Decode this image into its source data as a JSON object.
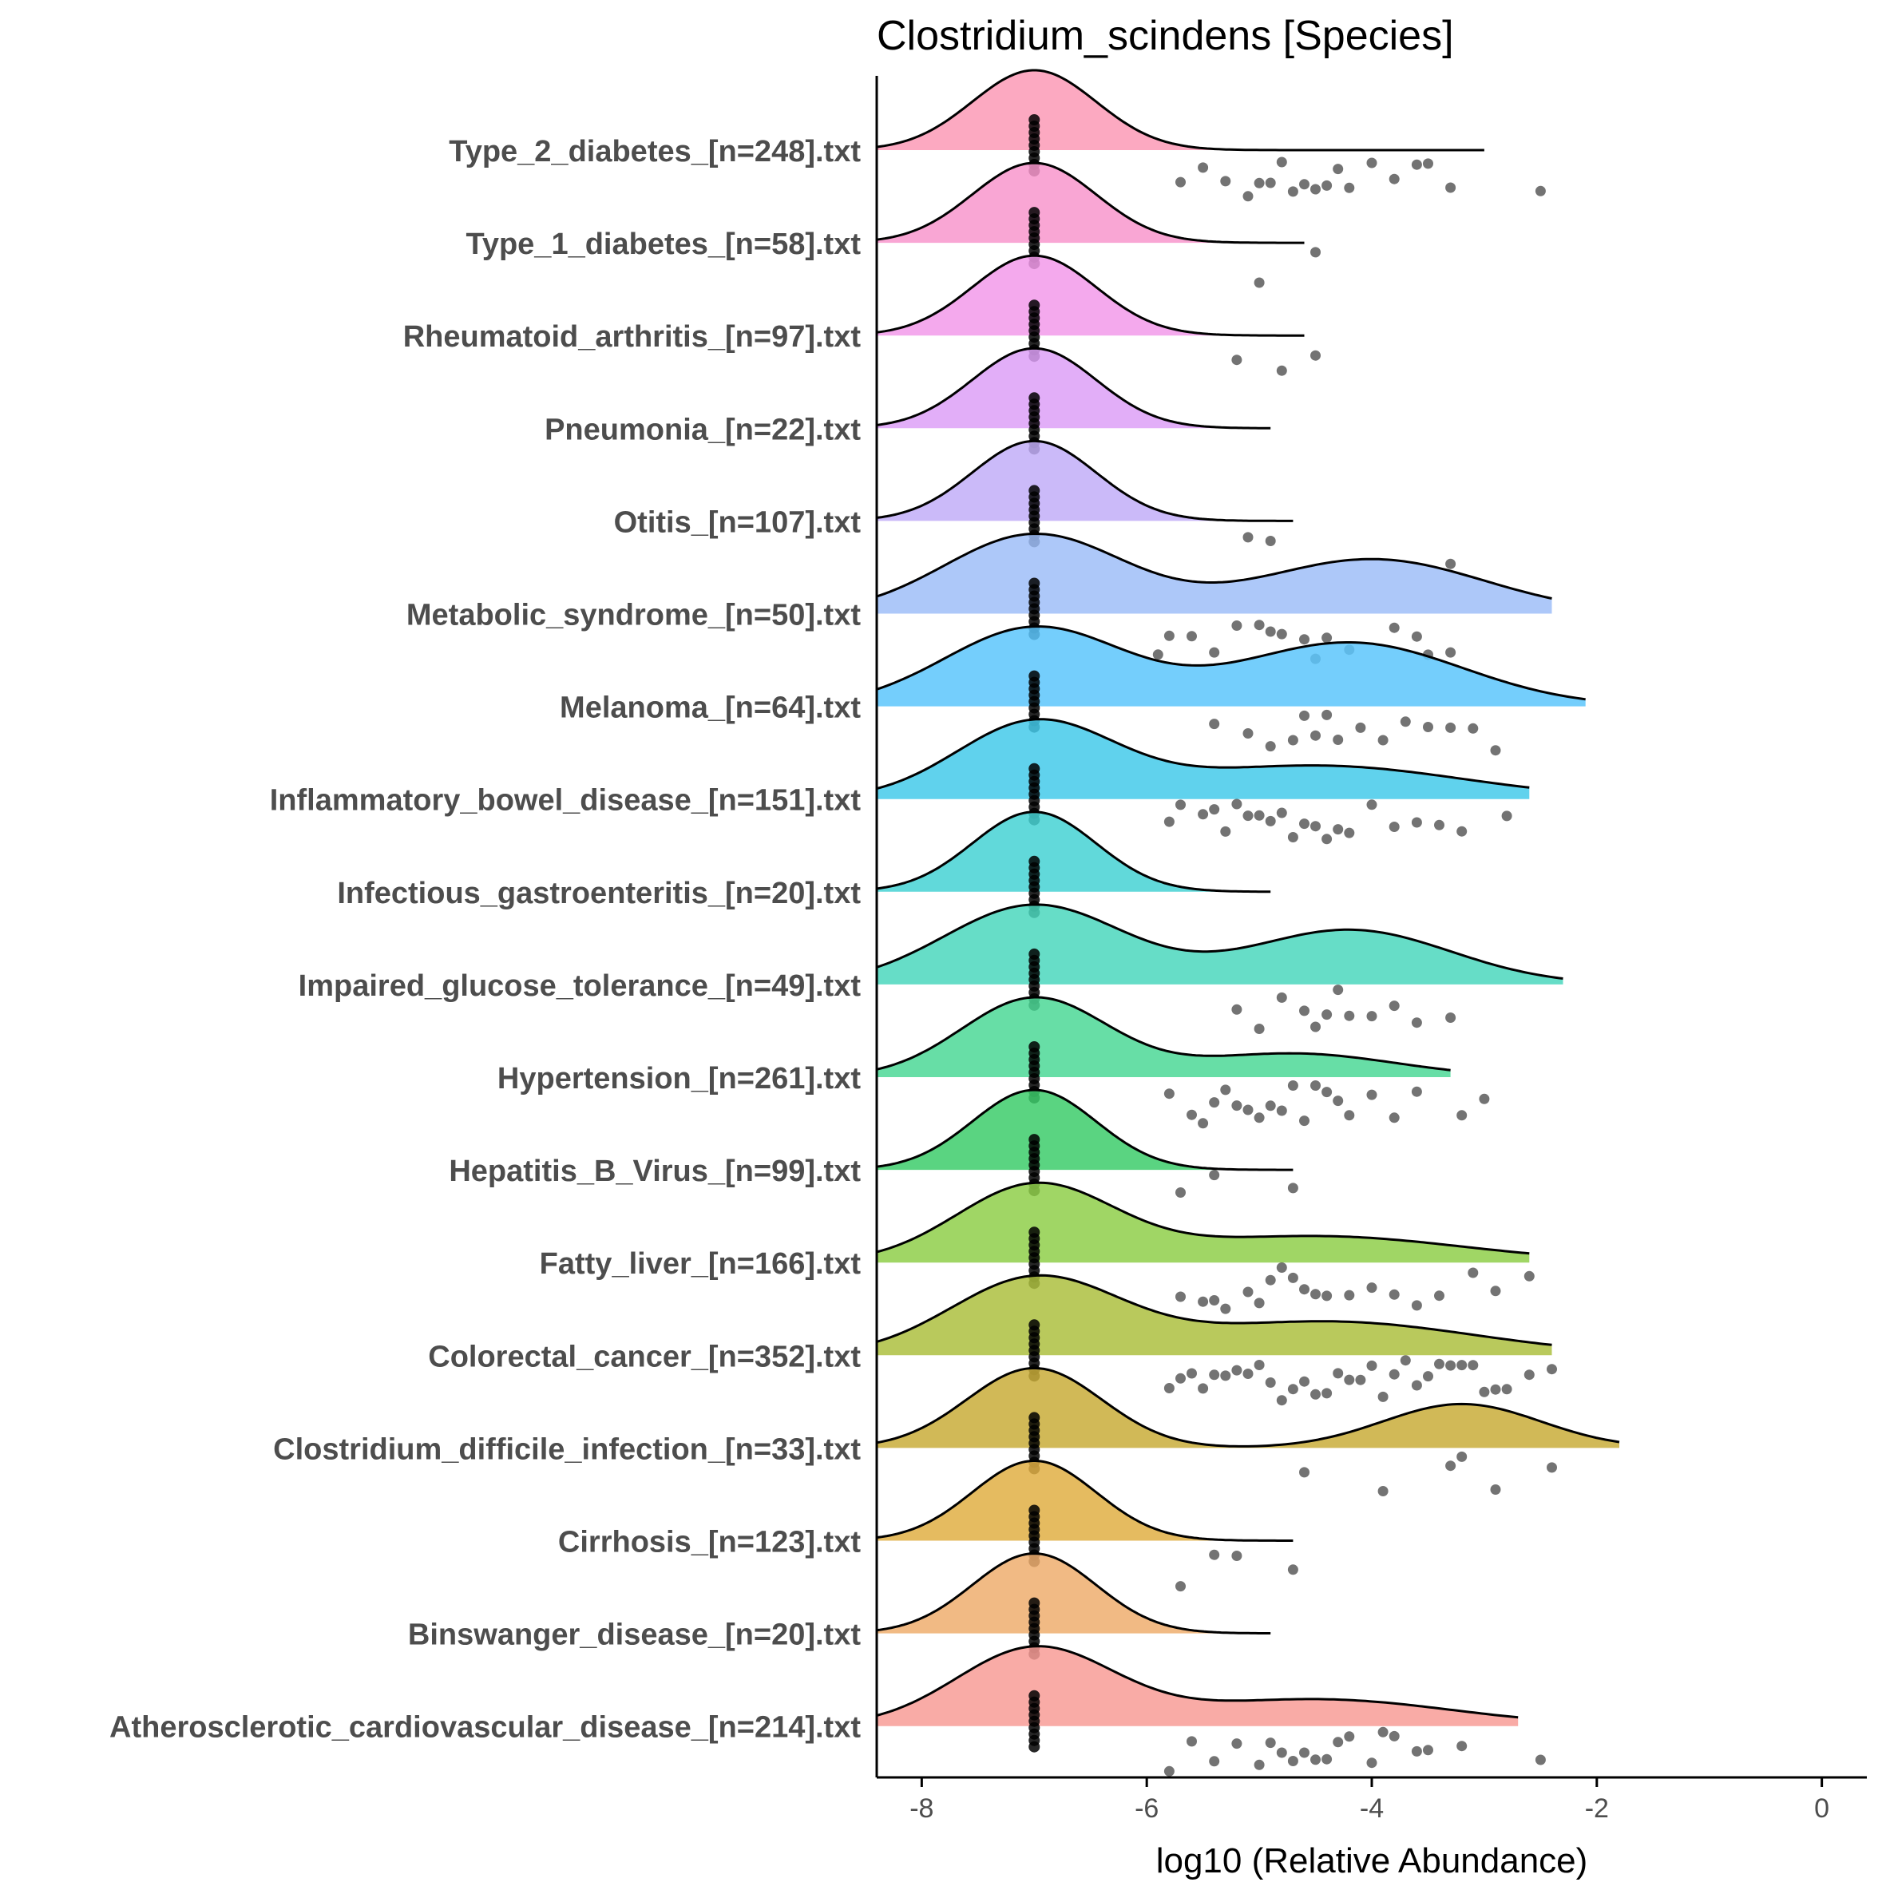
{
  "chart_data": {
    "type": "ridgeline",
    "title": "Clostridium_scindens [Species]",
    "xlabel": "log10 (Relative Abundance)",
    "ylabel": "",
    "xlim": [
      -8.4,
      0.4
    ],
    "xticks": [
      -8,
      -6,
      -4,
      -2,
      0
    ],
    "xtick_labels": [
      "-8",
      "-6",
      "-4",
      "-2",
      "0"
    ],
    "zero_value": -7,
    "series": [
      {
        "name": "Type_2_diabetes_[n=248].txt",
        "color": "#FB9AB6",
        "curve_end": -3.0,
        "bumps": [
          [
            -7,
            0.55,
            1
          ]
        ],
        "points": [
          -5.7,
          -5.5,
          -5.3,
          -5.1,
          -5.0,
          -4.9,
          -4.8,
          -4.7,
          -4.6,
          -4.5,
          -4.4,
          -4.3,
          -4.2,
          -4.0,
          -3.8,
          -3.6,
          -3.5,
          -3.3,
          -2.5
        ]
      },
      {
        "name": "Type_1_diabetes_[n=58].txt",
        "color": "#F896CC",
        "curve_end": -4.6,
        "bumps": [
          [
            -7,
            0.55,
            1
          ]
        ],
        "points": [
          -5.0,
          -4.5
        ]
      },
      {
        "name": "Rheumatoid_arthritis_[n=97].txt",
        "color": "#F29AEA",
        "curve_end": -4.6,
        "bumps": [
          [
            -7,
            0.55,
            1
          ]
        ],
        "points": [
          -5.2,
          -4.8,
          -4.5
        ]
      },
      {
        "name": "Pneumonia_[n=22].txt",
        "color": "#DDA0F7",
        "curve_end": -4.9,
        "bumps": [
          [
            -7,
            0.55,
            1
          ]
        ],
        "points": []
      },
      {
        "name": "Otitis_[n=107].txt",
        "color": "#C2AEF8",
        "curve_end": -4.7,
        "bumps": [
          [
            -7,
            0.55,
            1
          ]
        ],
        "points": [
          -5.1,
          -4.9,
          -3.3
        ]
      },
      {
        "name": "Metabolic_syndrome_[n=50].txt",
        "color": "#9FBEF8",
        "curve_end": -2.4,
        "bumps": [
          [
            -7,
            0.8,
            0.8
          ],
          [
            -4,
            1.0,
            0.55
          ]
        ],
        "points": [
          -5.9,
          -5.8,
          -5.6,
          -5.4,
          -5.2,
          -5.0,
          -4.9,
          -4.8,
          -4.6,
          -4.5,
          -4.4,
          -4.2,
          -3.8,
          -3.6,
          -3.5,
          -3.3
        ]
      },
      {
        "name": "Melanoma_[n=64].txt",
        "color": "#5CC6FB",
        "curve_end": -2.1,
        "bumps": [
          [
            -7,
            0.8,
            0.8
          ],
          [
            -4.2,
            1.0,
            0.65
          ]
        ],
        "points": [
          -5.4,
          -5.1,
          -4.9,
          -4.7,
          -4.6,
          -4.5,
          -4.4,
          -4.3,
          -4.1,
          -3.9,
          -3.7,
          -3.5,
          -3.3,
          -3.1,
          -2.9
        ]
      },
      {
        "name": "Inflammatory_bowel_disease_[n=151].txt",
        "color": "#44CAEA",
        "curve_end": -2.6,
        "bumps": [
          [
            -7,
            0.7,
            1
          ],
          [
            -4.5,
            1.3,
            0.45
          ]
        ],
        "points": [
          -5.8,
          -5.7,
          -5.5,
          -5.4,
          -5.3,
          -5.2,
          -5.1,
          -5.0,
          -4.9,
          -4.8,
          -4.7,
          -4.6,
          -4.5,
          -4.4,
          -4.3,
          -4.2,
          -4.0,
          -3.8,
          -3.6,
          -3.4,
          -3.2,
          -2.8
        ]
      },
      {
        "name": "Infectious_gastroenteritis_[n=20].txt",
        "color": "#45D2D3",
        "curve_end": -4.9,
        "bumps": [
          [
            -7,
            0.55,
            1
          ]
        ],
        "points": []
      },
      {
        "name": "Impaired_glucose_tolerance_[n=49].txt",
        "color": "#4BD7BD",
        "curve_end": -2.3,
        "bumps": [
          [
            -7,
            0.8,
            0.8
          ],
          [
            -4.2,
            0.9,
            0.55
          ]
        ],
        "points": [
          -5.2,
          -5.0,
          -4.8,
          -4.6,
          -4.5,
          -4.4,
          -4.3,
          -4.2,
          -4.0,
          -3.8,
          -3.6,
          -3.3
        ]
      },
      {
        "name": "Hypertension_[n=261].txt",
        "color": "#4CD897",
        "curve_end": -3.3,
        "bumps": [
          [
            -7,
            0.65,
            1
          ],
          [
            -4.7,
            0.9,
            0.3
          ]
        ],
        "points": [
          -5.8,
          -5.6,
          -5.5,
          -5.4,
          -5.3,
          -5.2,
          -5.1,
          -5.0,
          -4.9,
          -4.8,
          -4.7,
          -4.6,
          -4.5,
          -4.4,
          -4.3,
          -4.2,
          -4.0,
          -3.8,
          -3.6,
          -3.2,
          -3.0
        ]
      },
      {
        "name": "Hepatitis_B_Virus_[n=99].txt",
        "color": "#3DCC6B",
        "curve_end": -4.7,
        "bumps": [
          [
            -7,
            0.55,
            1
          ]
        ],
        "points": [
          -5.7,
          -5.4,
          -4.7
        ]
      },
      {
        "name": "Fatty_liver_[n=166].txt",
        "color": "#8FCF4A",
        "curve_end": -2.6,
        "bumps": [
          [
            -7,
            0.7,
            1
          ],
          [
            -4.5,
            1.3,
            0.35
          ]
        ],
        "points": [
          -5.7,
          -5.5,
          -5.4,
          -5.3,
          -5.1,
          -5.0,
          -4.9,
          -4.8,
          -4.7,
          -4.6,
          -4.5,
          -4.4,
          -4.2,
          -4.0,
          -3.8,
          -3.6,
          -3.4,
          -3.1,
          -2.9,
          -2.6
        ]
      },
      {
        "name": "Colorectal_cancer_[n=352].txt",
        "color": "#ADC03F",
        "curve_end": -2.4,
        "bumps": [
          [
            -7,
            0.75,
            1
          ],
          [
            -4.4,
            1.3,
            0.45
          ]
        ],
        "points": [
          -5.8,
          -5.7,
          -5.6,
          -5.5,
          -5.4,
          -5.3,
          -5.2,
          -5.1,
          -5.0,
          -4.9,
          -4.8,
          -4.7,
          -4.6,
          -4.5,
          -4.4,
          -4.3,
          -4.2,
          -4.1,
          -4.0,
          -3.9,
          -3.8,
          -3.7,
          -3.6,
          -3.5,
          -3.4,
          -3.3,
          -3.2,
          -3.1,
          -3.0,
          -2.9,
          -2.8,
          -2.6,
          -2.4
        ]
      },
      {
        "name": "Clostridium_difficile_infection_[n=33].txt",
        "color": "#C9AD3A",
        "curve_end": -1.8,
        "bumps": [
          [
            -7,
            0.6,
            1
          ],
          [
            -3.2,
            0.7,
            0.55
          ]
        ],
        "points": [
          -4.6,
          -3.9,
          -3.3,
          -3.2,
          -2.9,
          -2.4
        ]
      },
      {
        "name": "Cirrhosis_[n=123].txt",
        "color": "#E1AF44",
        "curve_end": -4.7,
        "bumps": [
          [
            -7,
            0.55,
            1
          ]
        ],
        "points": [
          -5.7,
          -5.4,
          -5.2,
          -4.7
        ]
      },
      {
        "name": "Binswanger_disease_[n=20].txt",
        "color": "#EFAE6E",
        "curve_end": -4.9,
        "bumps": [
          [
            -7,
            0.55,
            1
          ]
        ],
        "points": []
      },
      {
        "name": "Atherosclerotic_cardiovascular_disease_[n=214].txt",
        "color": "#F89C96",
        "curve_end": -2.7,
        "bumps": [
          [
            -7,
            0.7,
            1
          ],
          [
            -4.5,
            1.2,
            0.35
          ]
        ],
        "points": [
          -5.8,
          -5.6,
          -5.4,
          -5.2,
          -5.0,
          -4.9,
          -4.8,
          -4.7,
          -4.6,
          -4.5,
          -4.4,
          -4.3,
          -4.2,
          -4.0,
          -3.9,
          -3.8,
          -3.6,
          -3.5,
          -3.2,
          -2.5
        ]
      }
    ]
  }
}
